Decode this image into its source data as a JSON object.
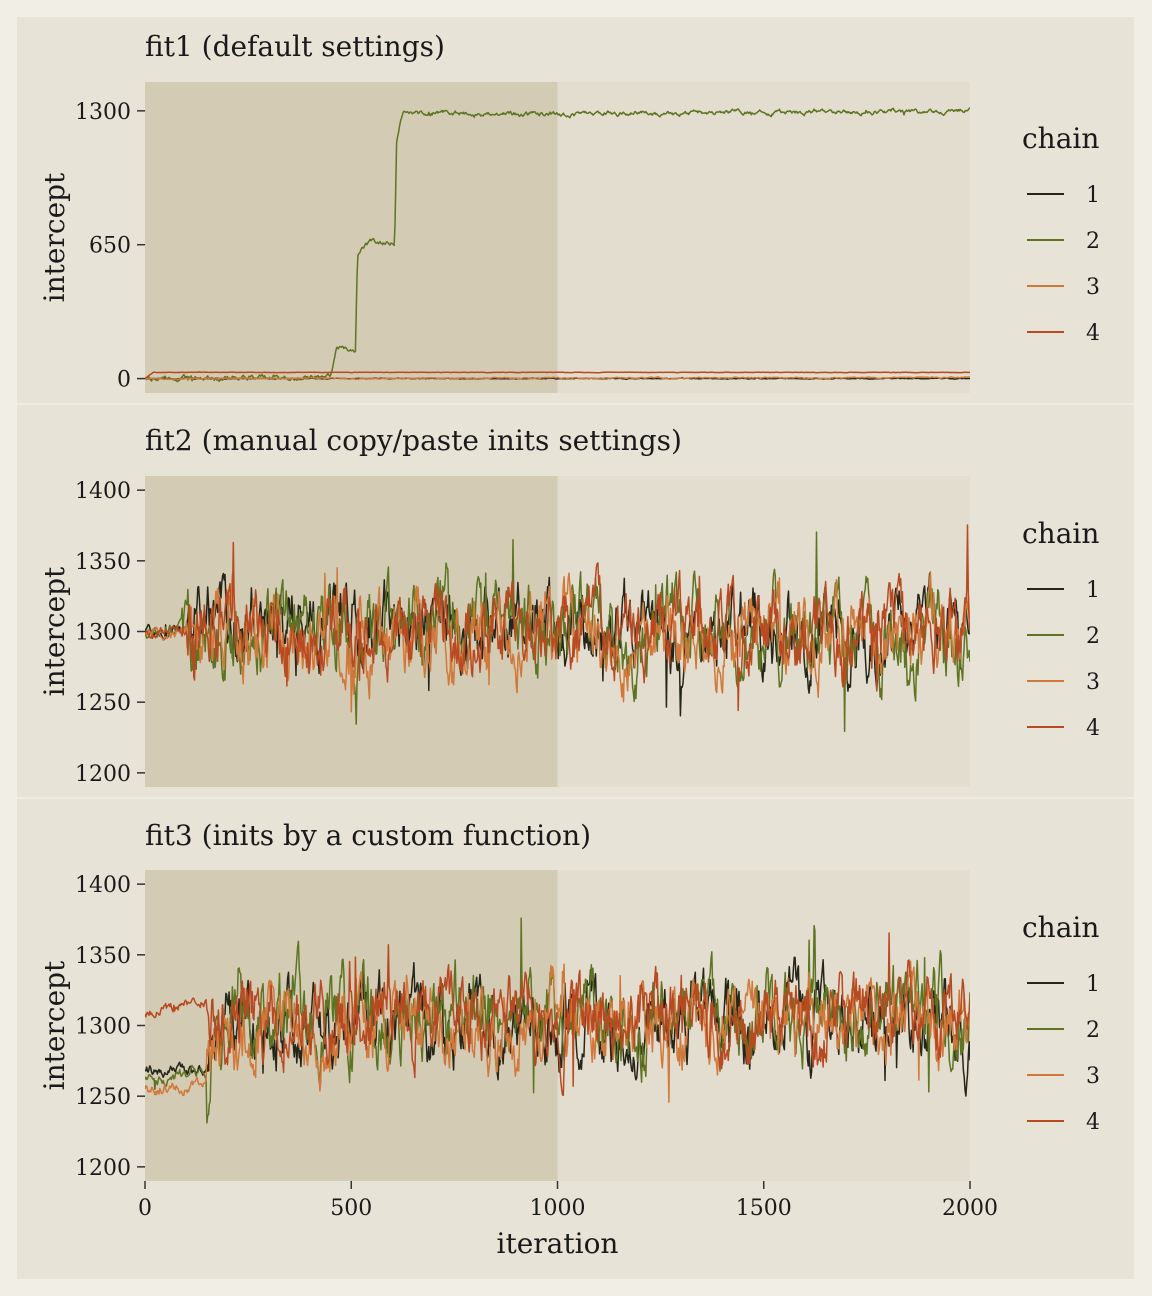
{
  "chart_data": [
    {
      "type": "line",
      "title": "fit1 (default settings)",
      "xlabel": "",
      "ylabel": "intercept",
      "xlim": [
        0,
        2000
      ],
      "ylim": [
        -70,
        1440
      ],
      "yticks": [
        0,
        650,
        1300
      ],
      "ytick_labels": [
        "0",
        "650",
        "1300"
      ],
      "warmup_end": 1000,
      "legend": {
        "title": "chain",
        "entries": [
          "1",
          "2",
          "3",
          "4"
        ],
        "placement": "right"
      },
      "series": [
        {
          "name": "1",
          "color": "#262618",
          "keyframes": [
            [
              0,
              0
            ],
            [
              2000,
              0
            ]
          ],
          "noise": 2,
          "seed": 11
        },
        {
          "name": "2",
          "color": "#5e7422",
          "keyframes": [
            [
              0,
              0
            ],
            [
              450,
              10
            ],
            [
              465,
              150
            ],
            [
              510,
              140
            ],
            [
              515,
              600
            ],
            [
              545,
              660
            ],
            [
              605,
              660
            ],
            [
              610,
              1150
            ],
            [
              625,
              1280
            ],
            [
              700,
              1290
            ],
            [
              1000,
              1285
            ],
            [
              2000,
              1300
            ]
          ],
          "noise": 12,
          "seed": 22
        },
        {
          "name": "3",
          "color": "#d0793a",
          "keyframes": [
            [
              0,
              0
            ],
            [
              2000,
              5
            ]
          ],
          "noise": 3,
          "seed": 33
        },
        {
          "name": "4",
          "color": "#b84a22",
          "keyframes": [
            [
              0,
              0
            ],
            [
              20,
              30
            ],
            [
              2000,
              30
            ]
          ],
          "noise": 1,
          "seed": 44
        }
      ]
    },
    {
      "type": "line",
      "title": "fit2 (manual copy/paste inits settings)",
      "xlabel": "",
      "ylabel": "intercept",
      "xlim": [
        0,
        2000
      ],
      "ylim": [
        1190,
        1410
      ],
      "yticks": [
        1200,
        1250,
        1300,
        1350,
        1400
      ],
      "ytick_labels": [
        "1200",
        "1250",
        "1300",
        "1350",
        "1400"
      ],
      "warmup_end": 1000,
      "legend": {
        "title": "chain",
        "entries": [
          "1",
          "2",
          "3",
          "4"
        ],
        "placement": "right"
      },
      "series": [
        {
          "name": "1",
          "color": "#262618",
          "keyframes": [
            [
              0,
              1300
            ],
            [
              100,
              1300
            ],
            [
              130,
              1310
            ],
            [
              2000,
              1300
            ]
          ],
          "noise": 28,
          "seed": 101
        },
        {
          "name": "2",
          "color": "#5e7422",
          "keyframes": [
            [
              0,
              1300
            ],
            [
              90,
              1305
            ],
            [
              2000,
              1295
            ]
          ],
          "noise": 30,
          "seed": 202
        },
        {
          "name": "3",
          "color": "#d0793a",
          "keyframes": [
            [
              0,
              1300
            ],
            [
              100,
              1300
            ],
            [
              130,
              1295
            ],
            [
              2000,
              1300
            ]
          ],
          "noise": 28,
          "seed": 303
        },
        {
          "name": "4",
          "color": "#b84a22",
          "keyframes": [
            [
              0,
              1300
            ],
            [
              100,
              1300
            ],
            [
              2000,
              1300
            ]
          ],
          "noise": 27,
          "seed": 404
        }
      ]
    },
    {
      "type": "line",
      "title": "fit3 (inits by a custom function)",
      "xlabel": "iteration",
      "ylabel": "intercept",
      "xlim": [
        0,
        2000
      ],
      "ylim": [
        1190,
        1410
      ],
      "yticks": [
        1200,
        1250,
        1300,
        1350,
        1400
      ],
      "ytick_labels": [
        "1200",
        "1250",
        "1300",
        "1350",
        "1400"
      ],
      "xticks": [
        0,
        500,
        1000,
        1500,
        2000
      ],
      "xtick_labels": [
        "0",
        "500",
        "1000",
        "1500",
        "2000"
      ],
      "warmup_end": 1000,
      "legend": {
        "title": "chain",
        "entries": [
          "1",
          "2",
          "3",
          "4"
        ],
        "placement": "right"
      },
      "series": [
        {
          "name": "1",
          "color": "#262618",
          "keyframes": [
            [
              0,
              1268
            ],
            [
              150,
              1268
            ],
            [
              200,
              1300
            ],
            [
              2000,
              1300
            ]
          ],
          "noise": 28,
          "seed": 505
        },
        {
          "name": "2",
          "color": "#5e7422",
          "keyframes": [
            [
              0,
              1262
            ],
            [
              150,
              1268
            ],
            [
              200,
              1310
            ],
            [
              2000,
              1305
            ]
          ],
          "noise": 30,
          "seed": 606
        },
        {
          "name": "3",
          "color": "#d0793a",
          "keyframes": [
            [
              0,
              1255
            ],
            [
              150,
              1258
            ],
            [
              190,
              1300
            ],
            [
              2000,
              1300
            ]
          ],
          "noise": 28,
          "seed": 707
        },
        {
          "name": "4",
          "color": "#b84a22",
          "keyframes": [
            [
              0,
              1308
            ],
            [
              150,
              1318
            ],
            [
              200,
              1305
            ],
            [
              2000,
              1305
            ]
          ],
          "noise": 27,
          "seed": 808
        }
      ]
    }
  ]
}
